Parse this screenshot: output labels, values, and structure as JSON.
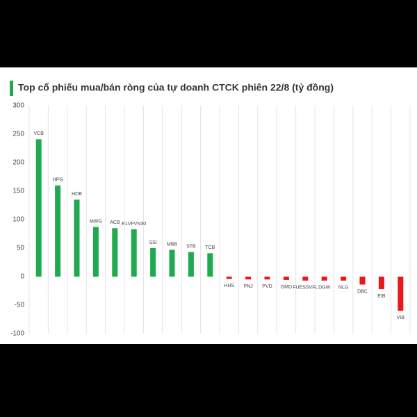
{
  "chart_data": {
    "type": "bar",
    "title": "Top cổ phiếu mua/bán ròng của tự doanh CTCK phiên 22/8 (tỷ đồng)",
    "categories": [
      "VCB",
      "HPG",
      "HDB",
      "MWG",
      "ACB",
      "E1VFVN30",
      "SSI",
      "MBB",
      "STB",
      "TCB",
      "HHS",
      "PNJ",
      "PVD",
      "GMD",
      "FUESSVFL",
      "DGW",
      "NLG",
      "DBC",
      "EIB",
      "VIB"
    ],
    "values": [
      241,
      160,
      135,
      87,
      85,
      83,
      50,
      47,
      43,
      41,
      -4,
      -5,
      -5,
      -6,
      -7,
      -7,
      -7,
      -14,
      -22,
      -60
    ],
    "positive_color": "#1faa4f",
    "negative_color": "#e8191b",
    "ylim": [
      -100,
      300
    ],
    "yticks": [
      -100,
      -50,
      0,
      50,
      100,
      150,
      200,
      250,
      300
    ]
  }
}
